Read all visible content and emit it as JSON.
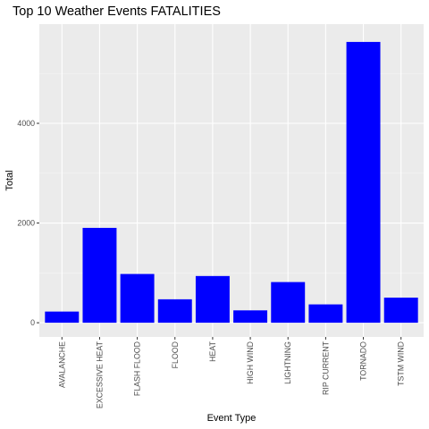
{
  "chart_data": {
    "type": "bar",
    "title": "Top 10 Weather Events FATALITIES",
    "xlabel": "Event Type",
    "ylabel": "Total",
    "categories": [
      "AVALANCHE",
      "EXCESSIVE HEAT",
      "FLASH FLOOD",
      "FLOOD",
      "HEAT",
      "HIGH WIND",
      "LIGHTNING",
      "RIP CURRENT",
      "TORNADO",
      "TSTM WIND"
    ],
    "values": [
      224,
      1903,
      978,
      470,
      937,
      248,
      816,
      368,
      5633,
      504
    ],
    "yticks": [
      0,
      2000,
      4000
    ],
    "ylim": [
      -285,
      5990
    ],
    "grid": true,
    "legend": "none",
    "colors": {
      "bar": "#0000ff",
      "panel_background": "#ebebeb",
      "grid_major": "#ffffff",
      "grid_minor": "#f5f5f5"
    }
  }
}
